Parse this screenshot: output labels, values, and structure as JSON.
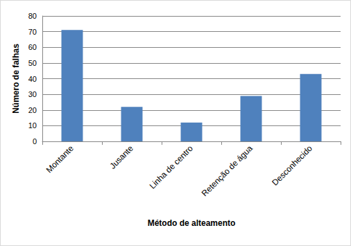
{
  "chart_data": {
    "type": "bar",
    "x_label": "Método de alteamento",
    "y_label": "Número de falhas",
    "categories": [
      "Montante",
      "Jusante",
      "Linha de centro",
      "Retenção de água",
      "Desconhecido"
    ],
    "values": [
      71,
      22,
      12,
      29,
      43
    ],
    "color": "#4f81bd",
    "ylim": [
      0,
      80
    ],
    "yticks": [
      0,
      10,
      20,
      30,
      40,
      50,
      60,
      70,
      80
    ],
    "grid": true
  }
}
